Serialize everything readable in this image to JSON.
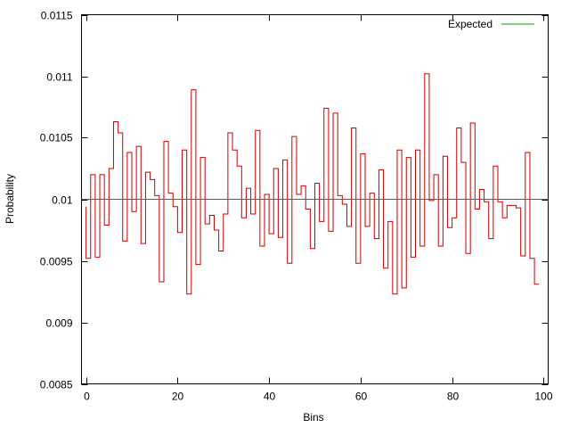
{
  "chart_data": {
    "type": "line",
    "title": "",
    "xlabel": "Bins",
    "ylabel": "Probability",
    "xlim": [
      -1,
      101
    ],
    "ylim": [
      0.0085,
      0.0115
    ],
    "x_ticks": [
      0,
      20,
      40,
      60,
      80,
      100
    ],
    "y_ticks": [
      0.0085,
      0.009,
      0.0095,
      0.01,
      0.0105,
      0.011,
      0.0115
    ],
    "y_tick_labels": [
      "0.0085",
      "0.009",
      "0.0095",
      "0.01",
      "0.0105",
      "0.011",
      "0.0115"
    ],
    "grid": false,
    "legend_position": "top-right",
    "series": [
      {
        "name": "",
        "style": "steps",
        "color": "#cc0000",
        "x": [
          0,
          1,
          2,
          3,
          4,
          5,
          6,
          7,
          8,
          9,
          10,
          11,
          12,
          13,
          14,
          15,
          16,
          17,
          18,
          19,
          20,
          21,
          22,
          23,
          24,
          25,
          26,
          27,
          28,
          29,
          30,
          31,
          32,
          33,
          34,
          35,
          36,
          37,
          38,
          39,
          40,
          41,
          42,
          43,
          44,
          45,
          46,
          47,
          48,
          49,
          50,
          51,
          52,
          53,
          54,
          55,
          56,
          57,
          58,
          59,
          60,
          61,
          62,
          63,
          64,
          65,
          66,
          67,
          68,
          69,
          70,
          71,
          72,
          73,
          74,
          75,
          76,
          77,
          78,
          79,
          80,
          81,
          82,
          83,
          84,
          85,
          86,
          87,
          88,
          89,
          90,
          91,
          92,
          93,
          94,
          95,
          96,
          97,
          98
        ],
        "values": [
          0.00952,
          0.0102,
          0.00953,
          0.0102,
          0.00979,
          0.01025,
          0.01063,
          0.01054,
          0.00966,
          0.01038,
          0.0099,
          0.01043,
          0.00964,
          0.01022,
          0.01016,
          0.01003,
          0.00933,
          0.01047,
          0.01005,
          0.00994,
          0.00973,
          0.0104,
          0.00923,
          0.01089,
          0.00947,
          0.01034,
          0.0098,
          0.00987,
          0.00975,
          0.00958,
          0.00988,
          0.01054,
          0.0104,
          0.01027,
          0.00985,
          0.01009,
          0.00988,
          0.01056,
          0.00962,
          0.01004,
          0.00972,
          0.01025,
          0.00969,
          0.01032,
          0.00948,
          0.01051,
          0.01004,
          0.01011,
          0.00992,
          0.0096,
          0.01013,
          0.00982,
          0.01074,
          0.00974,
          0.0107,
          0.01003,
          0.00996,
          0.00978,
          0.01058,
          0.00948,
          0.01037,
          0.00978,
          0.01005,
          0.00968,
          0.01024,
          0.00944,
          0.00982,
          0.00923,
          0.0104,
          0.00928,
          0.01034,
          0.00953,
          0.0104,
          0.00962,
          0.01102,
          0.00999,
          0.0102,
          0.00962,
          0.01035,
          0.00977,
          0.00985,
          0.01058,
          0.0103,
          0.00956,
          0.01062,
          0.00992,
          0.01008,
          0.00998,
          0.00968,
          0.01027,
          0.00998,
          0.00985,
          0.00995,
          0.00995,
          0.00993,
          0.00954,
          0.01038,
          0.00952,
          0.00931
        ]
      },
      {
        "name": "Expected",
        "style": "line",
        "color": "#00a000",
        "x": [
          -1,
          101
        ],
        "values": [
          0.01,
          0.01
        ]
      }
    ]
  }
}
